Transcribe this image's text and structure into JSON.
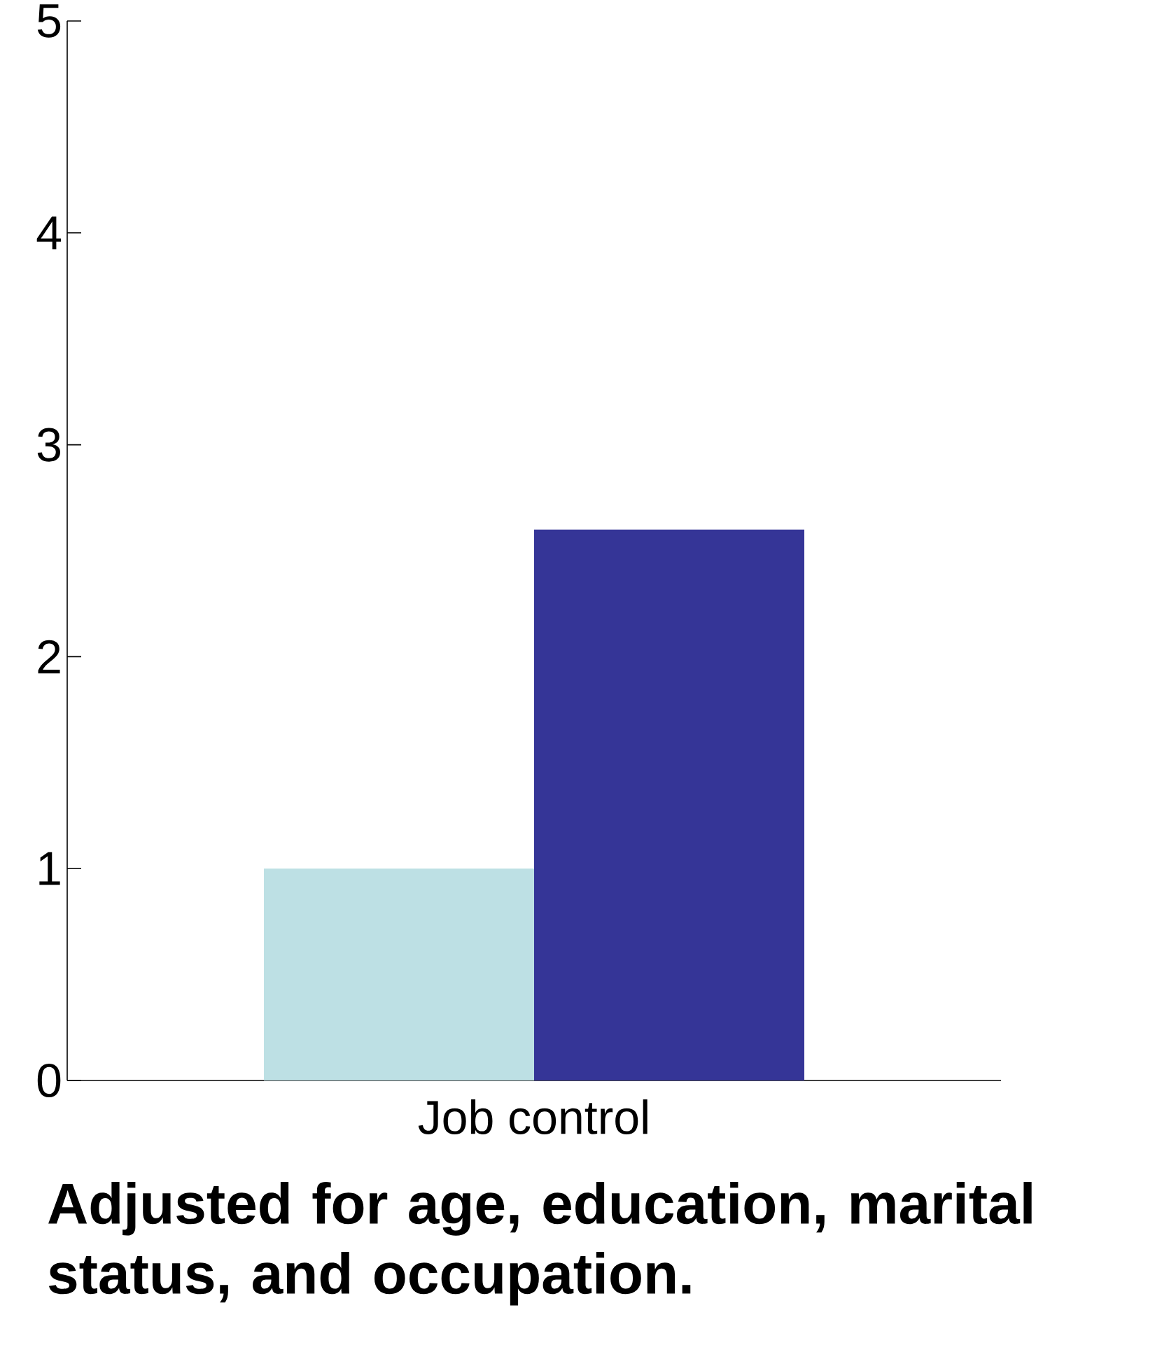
{
  "chart_data": {
    "type": "bar",
    "categories": [
      "Job control"
    ],
    "series": [
      {
        "color": "#bde0e4",
        "values": [
          1.0
        ]
      },
      {
        "color": "#353597",
        "values": [
          2.6
        ]
      }
    ],
    "ylim": [
      0,
      5
    ],
    "yticks": [
      0,
      1,
      2,
      3,
      4,
      5
    ],
    "annotations": [
      "Adjusted for age, education, marital status, and occupation."
    ]
  }
}
